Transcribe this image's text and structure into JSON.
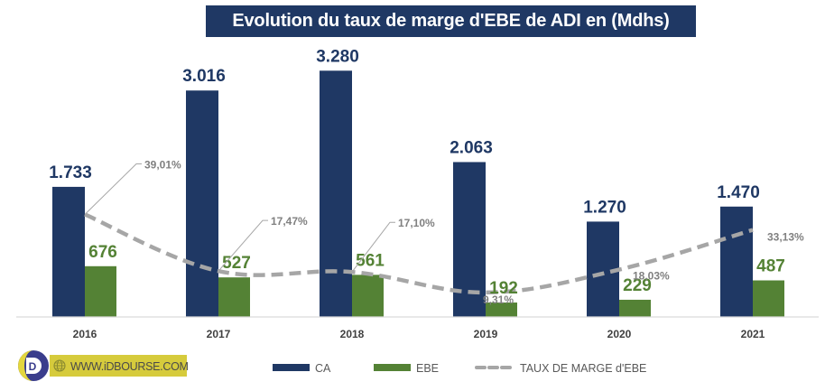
{
  "chart_data": {
    "type": "bar",
    "title": "Evolution du taux de marge d'EBE de ADI en (Mdhs)",
    "xlabel": "",
    "ylabel": "",
    "categories": [
      "2016",
      "2017",
      "2018",
      "2019",
      "2020",
      "2021"
    ],
    "ylim": [
      0,
      3500
    ],
    "y2lim": [
      0,
      100
    ],
    "grid": false,
    "legend_position": "bottom",
    "series": [
      {
        "name": "CA",
        "type": "bar",
        "color": "#1f3864",
        "values": [
          1733,
          3016,
          3280,
          2063,
          1270,
          1470
        ],
        "labels": [
          "1.733",
          "3.016",
          "3.280",
          "2.063",
          "1.270",
          "1.470"
        ]
      },
      {
        "name": "EBE",
        "type": "bar",
        "color": "#548235",
        "values": [
          676,
          527,
          561,
          192,
          229,
          487
        ],
        "labels": [
          "676",
          "527",
          "561",
          "192",
          "229",
          "487"
        ]
      },
      {
        "name": "TAUX DE MARGE d'EBE",
        "type": "line",
        "style": "dashed",
        "axis": "secondary",
        "color": "#a6a6a6",
        "values": [
          39.01,
          17.47,
          17.1,
          9.31,
          18.03,
          33.13
        ],
        "labels": [
          "39,01%",
          "17,47%",
          "17,10%",
          "9,31%",
          "18,03%",
          "33,13%"
        ]
      }
    ]
  },
  "branding": {
    "logo_letter": "D",
    "url_text": "WWW.iDBOURSE.COM",
    "colors": {
      "yellow": "#d6cb3c",
      "ring": "#3a3d8c"
    }
  }
}
